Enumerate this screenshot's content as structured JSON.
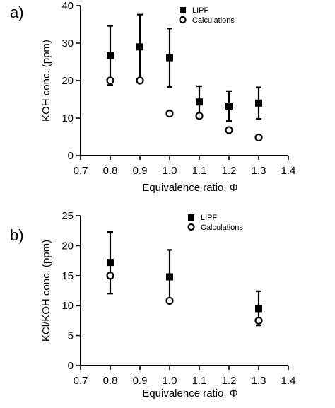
{
  "chart_data": [
    {
      "type": "scatter",
      "panel_label": "a)",
      "xlabel": "Equivalence ratio, Φ",
      "ylabel": "KOH conc. (ppm)",
      "xlim": [
        0.7,
        1.4
      ],
      "ylim": [
        0,
        40
      ],
      "xticks": [
        "0.7",
        "0.8",
        "0.9",
        "1.0",
        "1.1",
        "1.2",
        "1.3",
        "1.4"
      ],
      "yticks": [
        "0",
        "10",
        "20",
        "30",
        "40"
      ],
      "legend_position": "top-right",
      "series": [
        {
          "name": "LIPF",
          "marker": "filled-square",
          "x": [
            0.8,
            0.9,
            1.0,
            1.1,
            1.2,
            1.3
          ],
          "y": [
            26.7,
            29.0,
            26.1,
            14.3,
            13.2,
            14.0
          ],
          "err_low": [
            18.8,
            20.3,
            18.3,
            10.2,
            9.2,
            9.8
          ],
          "err_high": [
            34.6,
            37.6,
            33.9,
            18.5,
            17.2,
            18.2
          ]
        },
        {
          "name": "Calculations",
          "marker": "open-circle",
          "x": [
            0.8,
            0.9,
            1.0,
            1.1,
            1.2,
            1.3
          ],
          "y": [
            20.0,
            20.0,
            11.2,
            10.6,
            6.8,
            4.8
          ]
        }
      ]
    },
    {
      "type": "scatter",
      "panel_label": "b)",
      "xlabel": "Equivalence ratio, Φ",
      "ylabel": "KCl/KOH conc. (ppm)",
      "xlim": [
        0.7,
        1.4
      ],
      "ylim": [
        0,
        25
      ],
      "xticks": [
        "0.7",
        "0.8",
        "0.9",
        "1.0",
        "1.1",
        "1.2",
        "1.3",
        "1.4"
      ],
      "yticks": [
        "0",
        "5",
        "10",
        "15",
        "20",
        "25"
      ],
      "legend_position": "top-right",
      "series": [
        {
          "name": "LIPF",
          "marker": "filled-square",
          "x": [
            0.8,
            1.0,
            1.3
          ],
          "y": [
            17.2,
            14.8,
            9.5
          ],
          "err_low": [
            12.0,
            10.7,
            6.7
          ],
          "err_high": [
            22.3,
            19.3,
            12.4
          ]
        },
        {
          "name": "Calculations",
          "marker": "open-circle",
          "x": [
            0.8,
            1.0,
            1.3
          ],
          "y": [
            15.0,
            10.8,
            7.5
          ]
        }
      ]
    }
  ]
}
